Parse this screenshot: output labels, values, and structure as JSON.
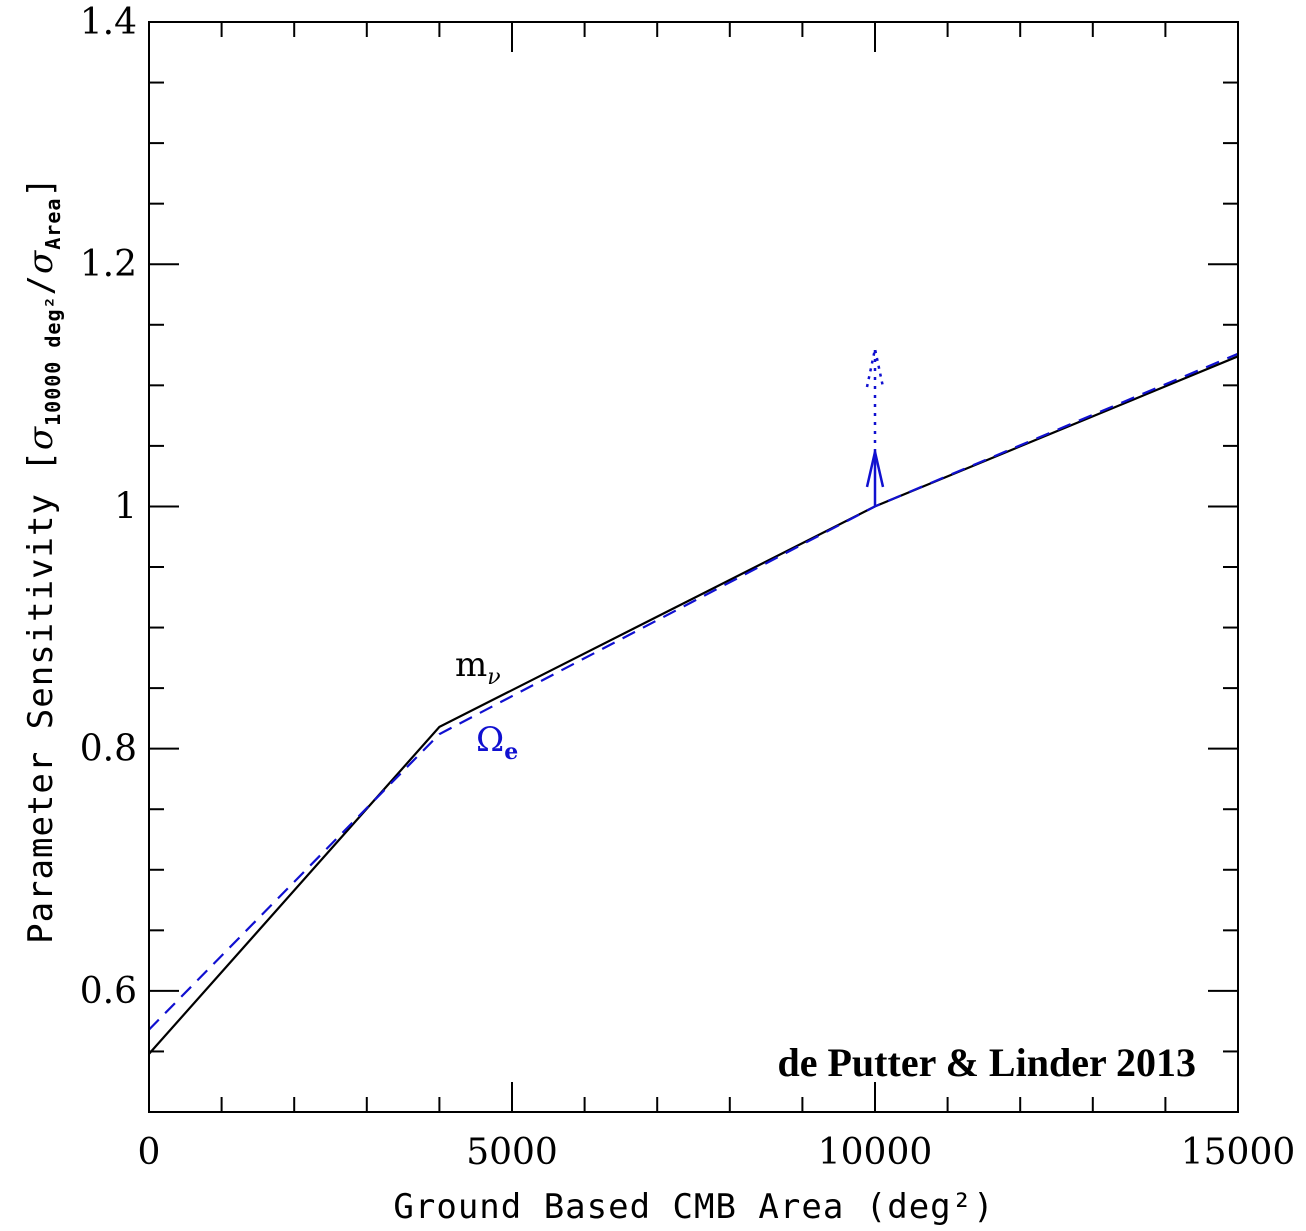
{
  "chart_data": {
    "type": "line",
    "title": "",
    "xlabel": "Ground Based CMB Area (deg²)",
    "ylabel_main": "Parameter Sensitivity [",
    "ylabel_sigma": "σ",
    "ylabel_num_sub": "10000 deg²",
    "ylabel_slash": "/",
    "ylabel_den_sub": "Area",
    "ylabel_close": "]",
    "xlim": [
      0,
      15000
    ],
    "ylim": [
      0.5,
      1.4
    ],
    "x_ticks": [
      0,
      5000,
      10000,
      15000
    ],
    "x_tick_labels": [
      "0",
      "5000",
      "10000",
      "15000"
    ],
    "x_minor_step": 1000,
    "y_ticks": [
      0.6,
      0.8,
      1.0,
      1.2,
      1.4
    ],
    "y_tick_labels": [
      "0.6",
      "0.8",
      "1",
      "1.2",
      "1.4"
    ],
    "y_minor_step": 0.05,
    "series": [
      {
        "label_main": "m",
        "label_sub": "ν",
        "color": "#000000",
        "style": "solid",
        "x": [
          0,
          4000,
          10000,
          15000
        ],
        "y": [
          0.548,
          0.818,
          1.0,
          1.124
        ]
      },
      {
        "label_main": "Ω",
        "label_sub": "e",
        "color": "#1010d0",
        "style": "dashed",
        "x": [
          0,
          4000,
          10000,
          15000
        ],
        "y": [
          0.568,
          0.812,
          1.0,
          1.126
        ]
      }
    ],
    "arrow_solid": {
      "x": 10000,
      "y_start": 1.0,
      "y_end": 1.045,
      "color": "#1010d0"
    },
    "arrow_dotted": {
      "x": 10000,
      "y_start": 1.045,
      "y_end": 1.13,
      "color": "#1010d0"
    },
    "credit": "de Putter  & Linder 2013"
  }
}
